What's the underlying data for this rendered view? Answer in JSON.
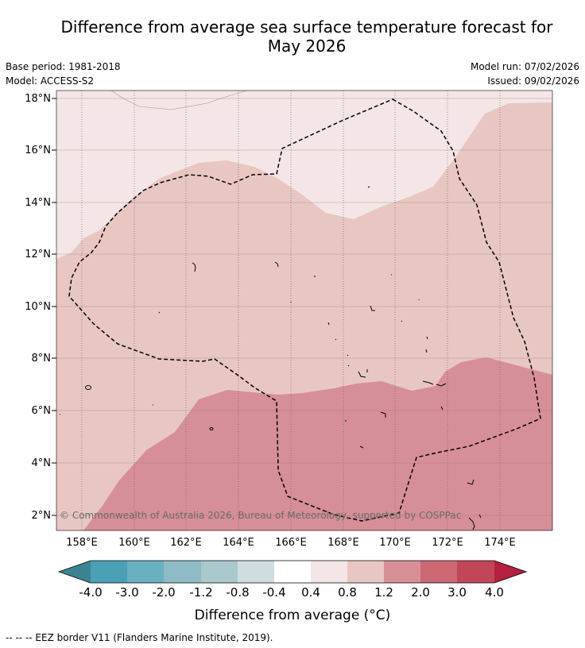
{
  "title": {
    "line1": "Difference from average sea surface temperature forecast for",
    "line2": "May 2026"
  },
  "meta": {
    "base_period": "Base period: 1981-2018",
    "model": "Model: ACCESS-S2",
    "model_run": "Model run: 07/02/2026",
    "issued": "Issued: 09/02/2026"
  },
  "map": {
    "lat_labels": [
      "18°N",
      "16°N",
      "14°N",
      "12°N",
      "10°N",
      "8°N",
      "6°N",
      "4°N",
      "2°N"
    ],
    "lon_labels": [
      "158°E",
      "160°E",
      "162°E",
      "164°E",
      "166°E",
      "168°E",
      "170°E",
      "172°E",
      "174°E"
    ],
    "copyright": "© Commonwealth of Australia 2026, Bureau of Meteorology, supported by COSPPac"
  },
  "colorbar": {
    "tick_labels": [
      "-4.0",
      "-3.0",
      "-2.0",
      "-1.2",
      "-0.8",
      "-0.4",
      "0.4",
      "0.8",
      "1.2",
      "2.0",
      "3.0",
      "4.0"
    ],
    "colors": [
      "#3c8391",
      "#4aa0b5",
      "#6ab0c0",
      "#8ebbc6",
      "#a9c9cd",
      "#cfdde1",
      "#ffffff",
      "#f4e6e6",
      "#e8c7c3",
      "#d78f97",
      "#cc6874",
      "#c04758",
      "#b3213f"
    ],
    "label": "Difference from average (°C)"
  },
  "footnote": "--  --  -- EEZ border V11 (Flanders Marine Institute, 2019)."
}
